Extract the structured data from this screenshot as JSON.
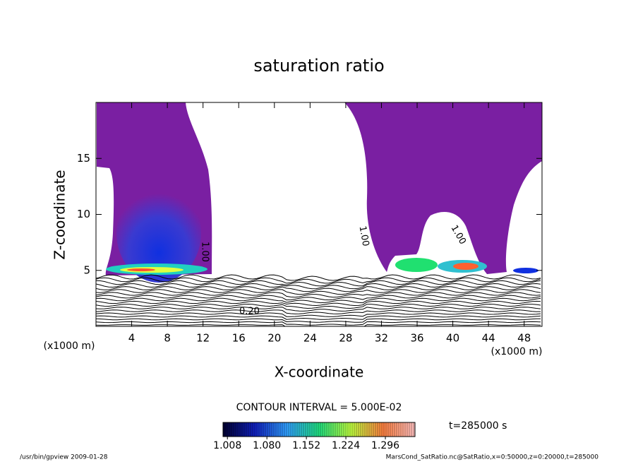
{
  "chart_data": {
    "type": "contour",
    "title": "saturation ratio",
    "x_label": "X-coordinate",
    "y_label": "Z-coordinate",
    "axis_unit": "(x1000 m)",
    "xlim": [
      0,
      50
    ],
    "xticks": [
      4,
      8,
      12,
      16,
      20,
      24,
      28,
      32,
      36,
      40,
      44,
      48
    ],
    "ylim": [
      0,
      20
    ],
    "yticks": [
      5,
      10,
      15
    ],
    "contour_labels": [
      "1.00",
      "1.00",
      "1.00",
      "0.20"
    ],
    "contour_interval": "CONTOUR INTERVAL = 5.000E-02",
    "colorbar": {
      "clim": [
        1.0,
        1.35
      ],
      "ticks": [
        1.008,
        {
          "value": 1.08,
          "label": "1.080"
        },
        1.152,
        1.224,
        1.296
      ],
      "colors": [
        "#000030",
        "#1020c0",
        "#30a0ff",
        "#20e080",
        "#c0ff40",
        "#ff8040",
        "#ffc0c0"
      ]
    },
    "time_label": "t=285000 s",
    "footer_left": "/usr/bin/gpview  2009-01-28",
    "footer_right": "MarsCond_SatRatio.nc@SatRatio,x=0:50000,z=0:20000,t=285000"
  }
}
